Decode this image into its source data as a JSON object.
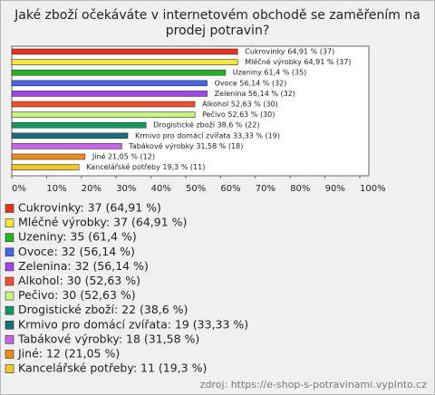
{
  "chart_data": {
    "type": "bar",
    "title": "Jaké zboží očekáváte v internetovém obchodě se zaměřením na prodej potravin?",
    "values": [
      64.91,
      64.91,
      61.4,
      56.14,
      56.14,
      52.63,
      52.63,
      38.6,
      33.33,
      31.58,
      21.05,
      19.3
    ],
    "value_labels": [
      "Cukrovinky 64,91 % (37)",
      "Mléčné výrobky 64,91 % (37)",
      "Uzeniny 61,4 % (35)",
      "Ovoce 56,14 % (32)",
      "Zelenina 56,14 % (32)",
      "Alkohol 52,63 % (30)",
      "Pečivo 52,63 % (30)",
      "Drogistické zboží 38,6 % (22)",
      "Krmivo pro domácí zvířata 33,33 % (19)",
      "Tabákové výrobky 31,58 % (18)",
      "Jiné 21,05 % (12)",
      "Kancelářské potřeby 19,3 % (11)"
    ],
    "colors": [
      "#e8321e",
      "#f5e63c",
      "#22b422",
      "#4664e6",
      "#a046e6",
      "#f0502d",
      "#c8f582",
      "#149664",
      "#1e6e78",
      "#c864e6",
      "#f08c1e",
      "#f0c828"
    ],
    "legend_labels": [
      "Cukrovinky: 37 (64,91 %)",
      "Mléčné výrobky: 37 (64,91 %)",
      "Uzeniny: 35 (61,4 %)",
      "Ovoce: 32 (56,14 %)",
      "Zelenina: 32 (56,14 %)",
      "Alkohol: 30 (52,63 %)",
      "Pečivo: 30 (52,63 %)",
      "Drogistické zboží: 22 (38,6 %)",
      "Krmivo pro domácí zvířata: 19 (33,33 %)",
      "Tabákové výrobky: 18 (31,58 %)",
      "Jiné: 12 (21,05 %)",
      "Kancelářské potřeby: 11 (19,3 %)"
    ],
    "xlim": [
      0,
      100
    ],
    "xticks": [
      {
        "value": 0,
        "label": "0%"
      },
      {
        "value": 10,
        "label": "10%"
      },
      {
        "value": 20,
        "label": "20%"
      },
      {
        "value": 30,
        "label": "30%"
      },
      {
        "value": 40,
        "label": "40%"
      },
      {
        "value": 50,
        "label": "50%"
      },
      {
        "value": 60,
        "label": "60%"
      },
      {
        "value": 70,
        "label": "70%"
      },
      {
        "value": 80,
        "label": "80%"
      },
      {
        "value": 90,
        "label": "90%"
      },
      {
        "value": 100,
        "label": "100%"
      }
    ],
    "source": "zdroj: https://e-shop-s-potravinami.vyplnto.cz"
  }
}
